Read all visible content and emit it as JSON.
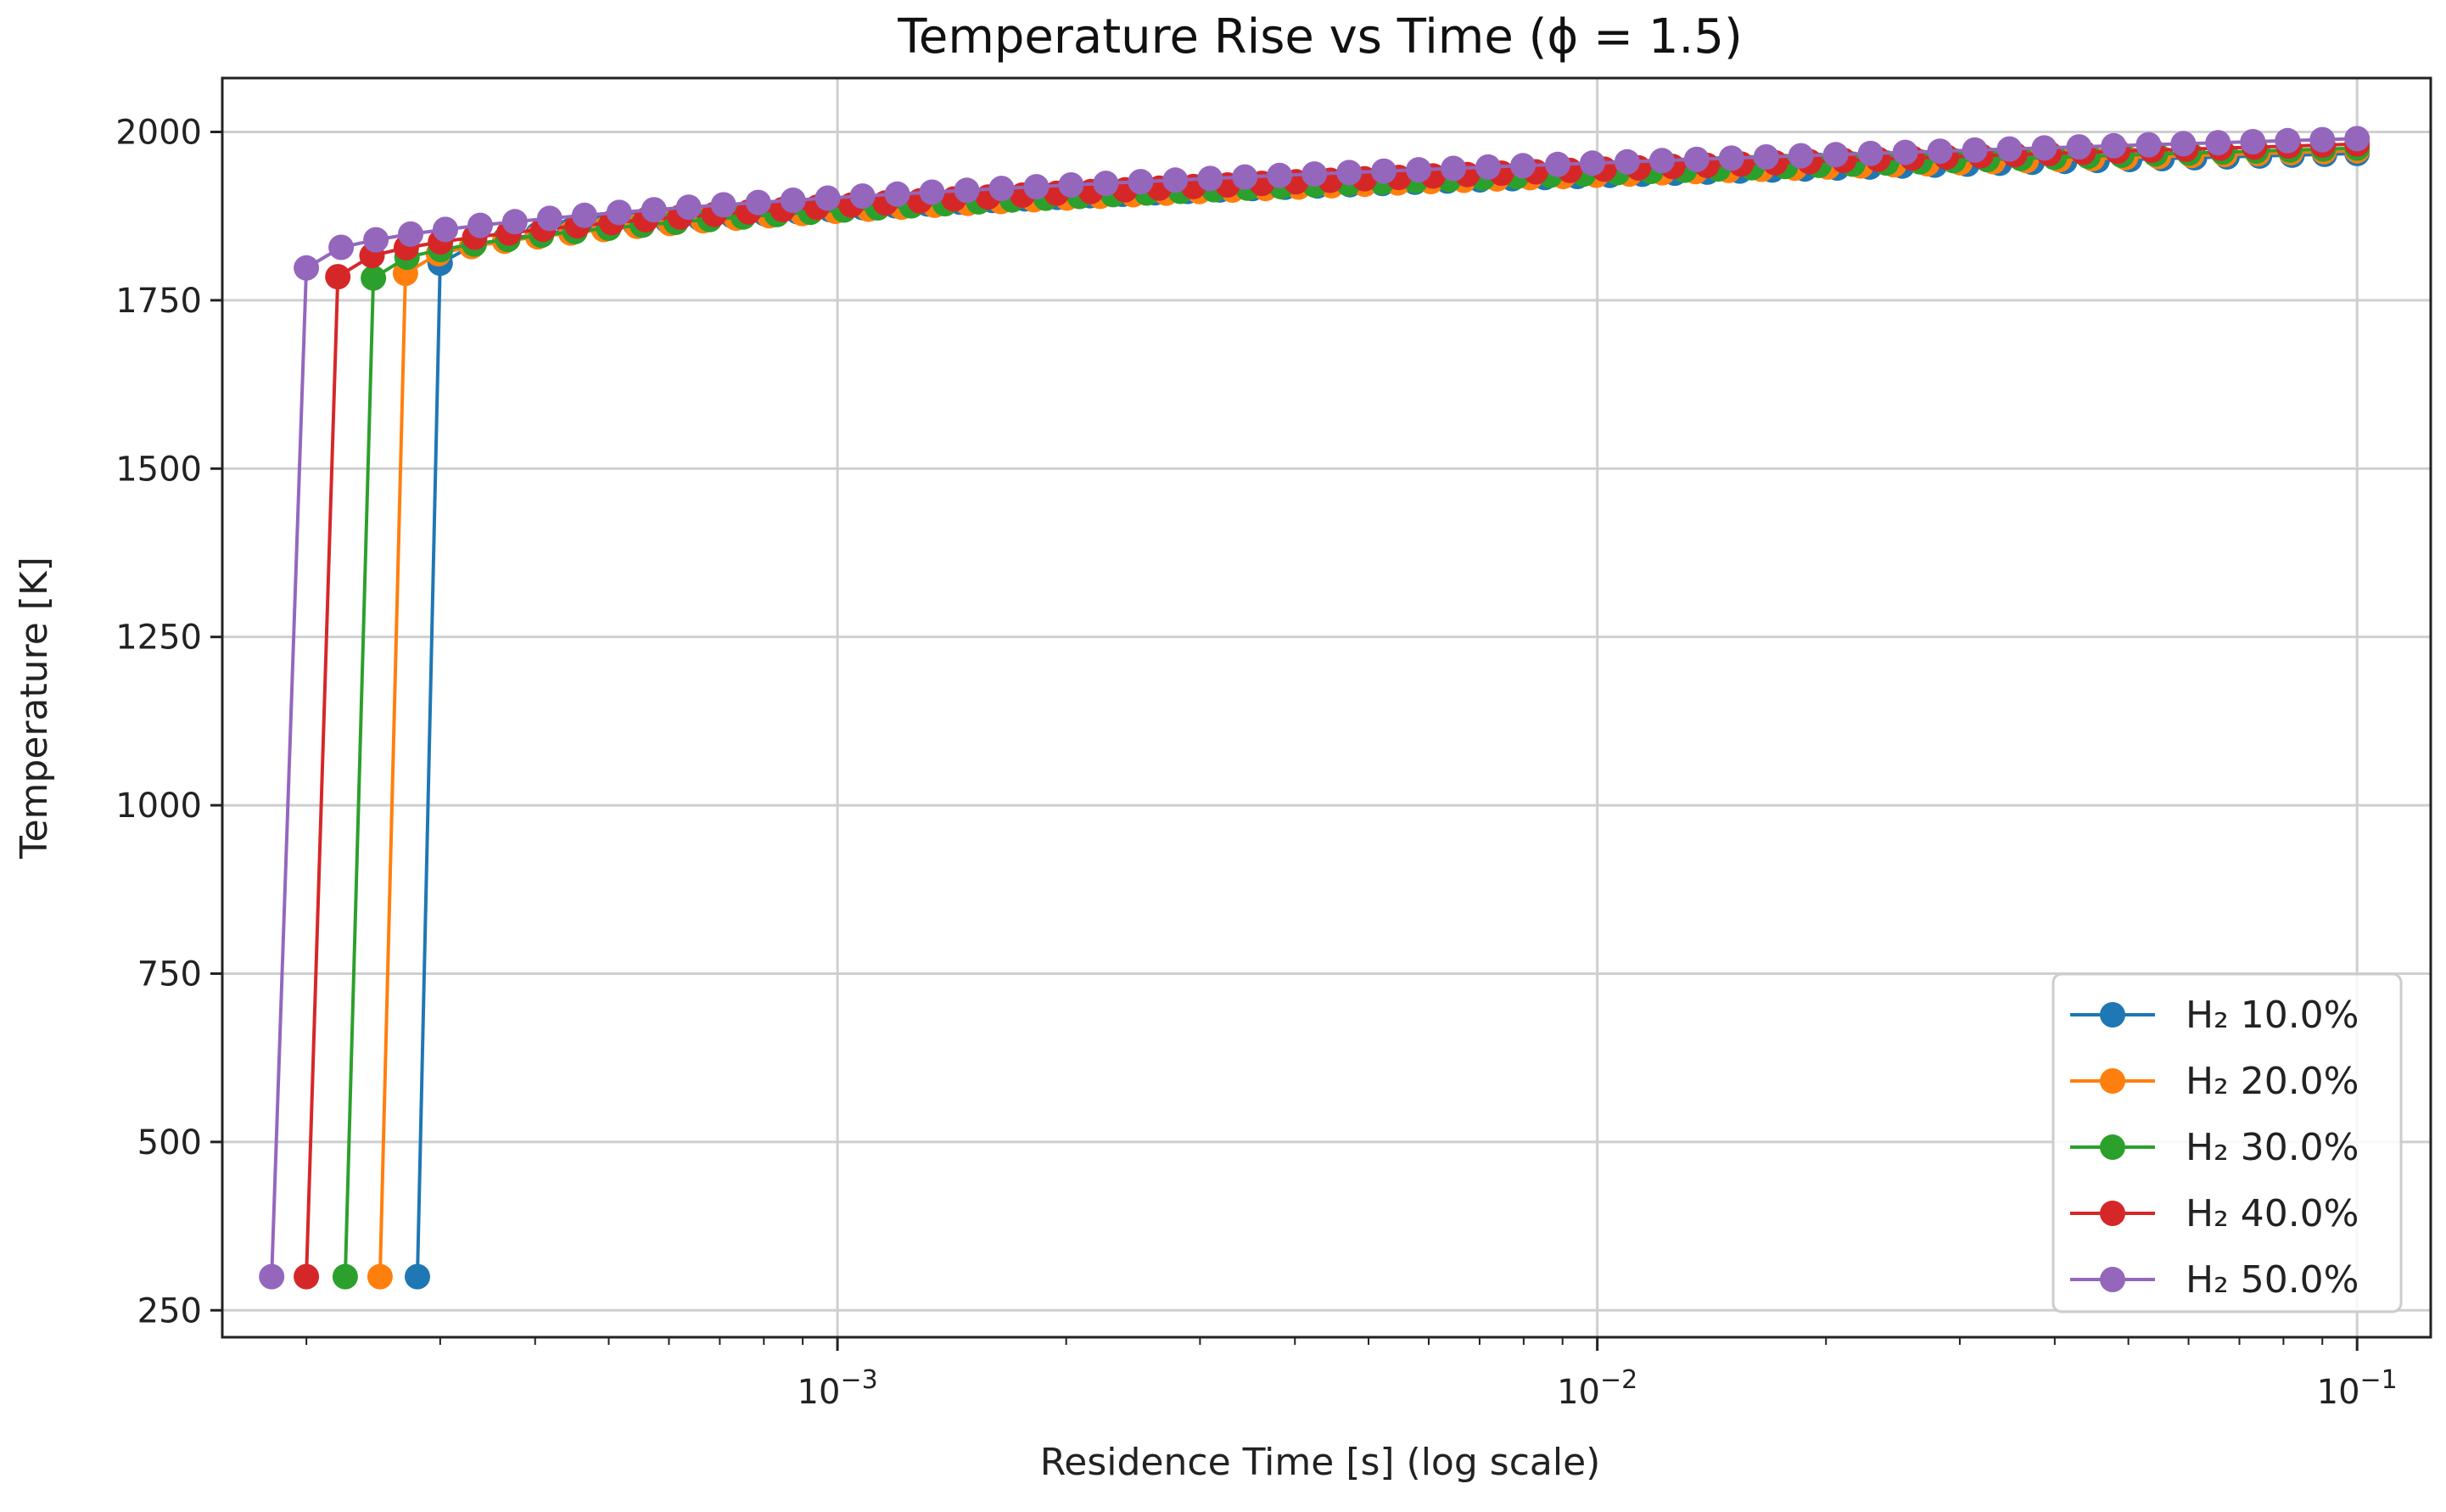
{
  "chart_data": {
    "type": "line",
    "title": "Temperature Rise vs Time (ϕ = 1.5)",
    "xlabel": "Residence Time [s] (log scale)",
    "ylabel": "Temperature [K]",
    "xscale": "log",
    "xlim": [
      0.000155,
      0.125
    ],
    "ylim": [
      210,
      2080
    ],
    "grid": true,
    "legend_position": "lower-right",
    "x_ticks": [
      {
        "value": 0.001,
        "base": "10",
        "exp": "−3"
      },
      {
        "value": 0.01,
        "base": "10",
        "exp": "−2"
      },
      {
        "value": 0.1,
        "base": "10",
        "exp": "−1"
      }
    ],
    "y_ticks": [
      {
        "value": 250,
        "label": "250"
      },
      {
        "value": 500,
        "label": "500"
      },
      {
        "value": 750,
        "label": "750"
      },
      {
        "value": 1000,
        "label": "1000"
      },
      {
        "value": 1250,
        "label": "1250"
      },
      {
        "value": 1500,
        "label": "1500"
      },
      {
        "value": 1750,
        "label": "1750"
      },
      {
        "value": 2000,
        "label": "2000"
      }
    ],
    "series": [
      {
        "name": "H₂ 10.0%",
        "color": "#1f77b4",
        "t_start": 0.00028,
        "t_ignite": 0.0003,
        "T0": 300,
        "T_ignite": 1805,
        "T_end": 1968
      },
      {
        "name": "H₂ 20.0%",
        "color": "#ff7f0e",
        "t_start": 0.00025,
        "t_ignite": 0.00027,
        "T0": 300,
        "T_ignite": 1790,
        "T_end": 1972
      },
      {
        "name": "H₂ 30.0%",
        "color": "#2ca02c",
        "t_start": 0.000225,
        "t_ignite": 0.000245,
        "T0": 300,
        "T_ignite": 1783,
        "T_end": 1976
      },
      {
        "name": "H₂ 40.0%",
        "color": "#d62728",
        "t_start": 0.0002,
        "t_ignite": 0.00022,
        "T0": 300,
        "T_ignite": 1785,
        "T_end": 1982
      },
      {
        "name": "H₂ 50.0%",
        "color": "#9467bd",
        "t_start": 0.00018,
        "t_ignite": 0.0002,
        "T0": 300,
        "T_ignite": 1798,
        "T_end": 1990
      }
    ],
    "sampling": {
      "n_points": 60,
      "t_end": 0.1
    }
  }
}
